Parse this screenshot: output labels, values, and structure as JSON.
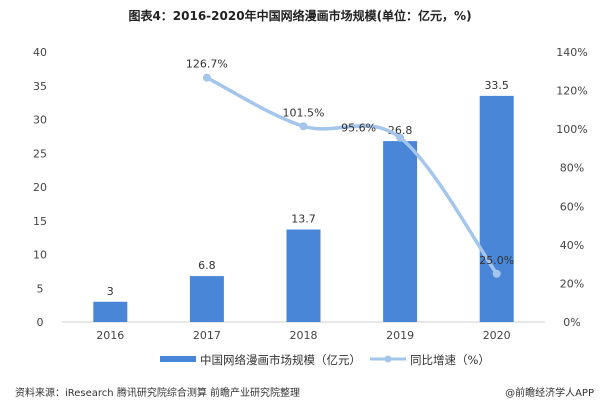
{
  "chart_data": {
    "type": "bar+line",
    "title": "图表4：2016-2020年中国网络漫画市场规模(单位：亿元，%)",
    "categories": [
      "2016",
      "2017",
      "2018",
      "2019",
      "2020"
    ],
    "series": [
      {
        "name": "中国网络漫画市场规模（亿元）",
        "type": "bar",
        "axis": "left",
        "values": [
          3,
          6.8,
          13.7,
          26.8,
          33.5
        ],
        "labels": [
          "3",
          "6.8",
          "13.7",
          "26.8",
          "33.5"
        ],
        "color": "#4a86d8"
      },
      {
        "name": "同比增速（%）",
        "type": "line",
        "axis": "right",
        "values": [
          null,
          126.7,
          101.5,
          95.6,
          25.0
        ],
        "labels": [
          "",
          "126.7%",
          "101.5%",
          "95.6%",
          "25.0%"
        ],
        "color": "#a4c6ec"
      }
    ],
    "ylim": [
      0,
      40
    ],
    "yticks": [
      "0",
      "5",
      "10",
      "15",
      "20",
      "25",
      "30",
      "35",
      "40"
    ],
    "y2lim": [
      0,
      140
    ],
    "y2ticks": [
      "0%",
      "20%",
      "40%",
      "60%",
      "80%",
      "100%",
      "120%",
      "140%"
    ],
    "legend": "bottom"
  },
  "footer": {
    "source": "资料来源：iResearch 腾讯研究院综合测算 前瞻产业研究院整理",
    "credit": "@前瞻经济学人APP"
  }
}
